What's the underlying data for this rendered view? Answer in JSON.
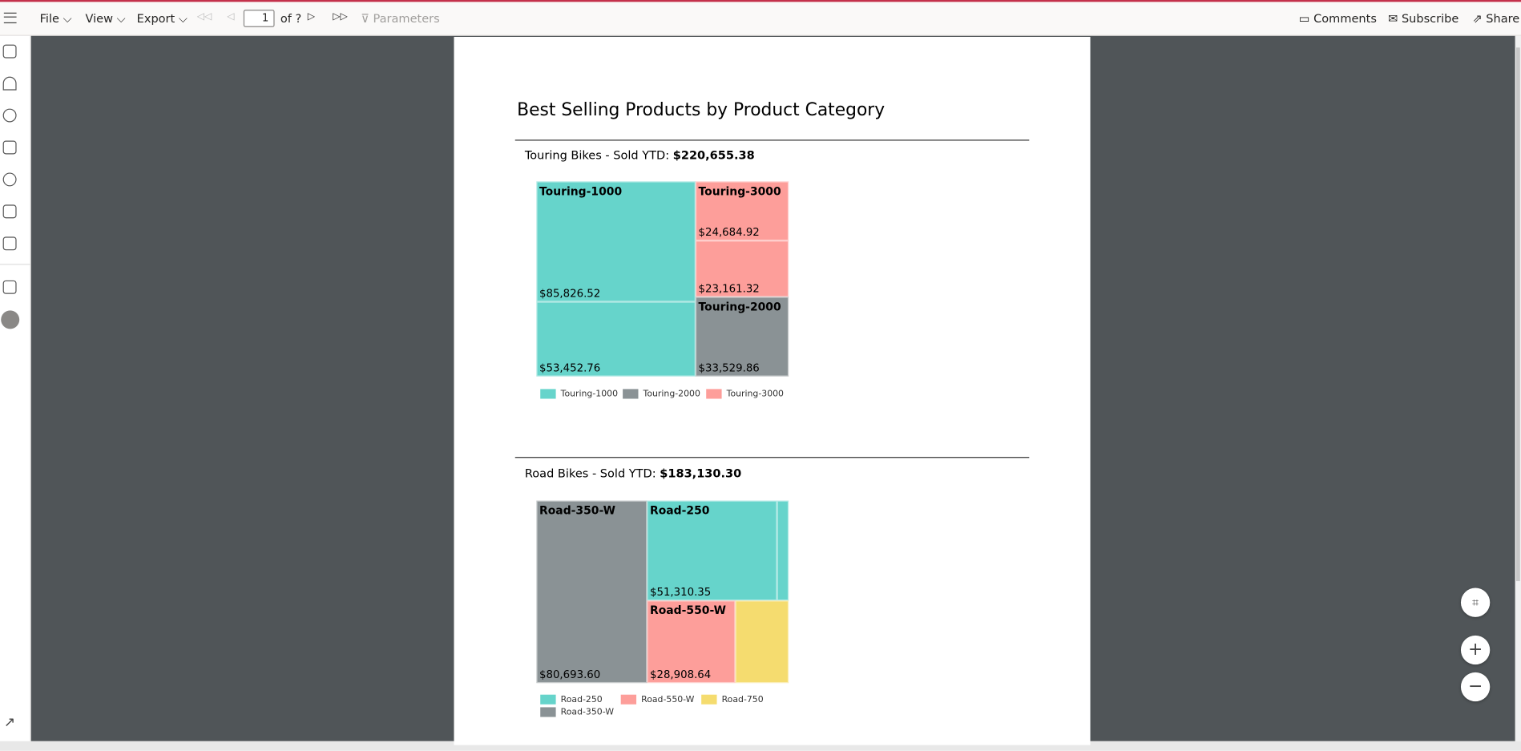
{
  "toolbar": {
    "menus": [
      "File",
      "View",
      "Export"
    ],
    "page_number": "1",
    "page_of": "of ?",
    "parameters": "Parameters",
    "actions": [
      "Comments",
      "Subscribe",
      "Share"
    ]
  },
  "report": {
    "title": "Best Selling Products by Product Category",
    "sections": [
      {
        "label": "Touring Bikes - Sold YTD:",
        "total": "$220,655.38",
        "tiles": [
          {
            "name": "Touring-1000",
            "value": "$85,826.52"
          },
          {
            "value": "$53,452.76"
          },
          {
            "name": "Touring-3000",
            "value": "$24,684.92"
          },
          {
            "value": "$23,161.32"
          },
          {
            "name": "Touring-2000",
            "value": "$33,529.86"
          }
        ],
        "legend": [
          "Touring-1000",
          "Touring-2000",
          "Touring-3000"
        ]
      },
      {
        "label": "Road Bikes - Sold YTD:",
        "total": "$183,130.30",
        "tiles": [
          {
            "name": "Road-350-W",
            "value": "$80,693.60"
          },
          {
            "name": "Road-250",
            "value": "$51,310.35"
          },
          {
            "name": "Road-550-W",
            "value": "$28,908.64"
          }
        ],
        "legend": [
          "Road-250",
          "Road-550-W",
          "Road-750",
          "Road-350-W"
        ]
      }
    ]
  }
}
